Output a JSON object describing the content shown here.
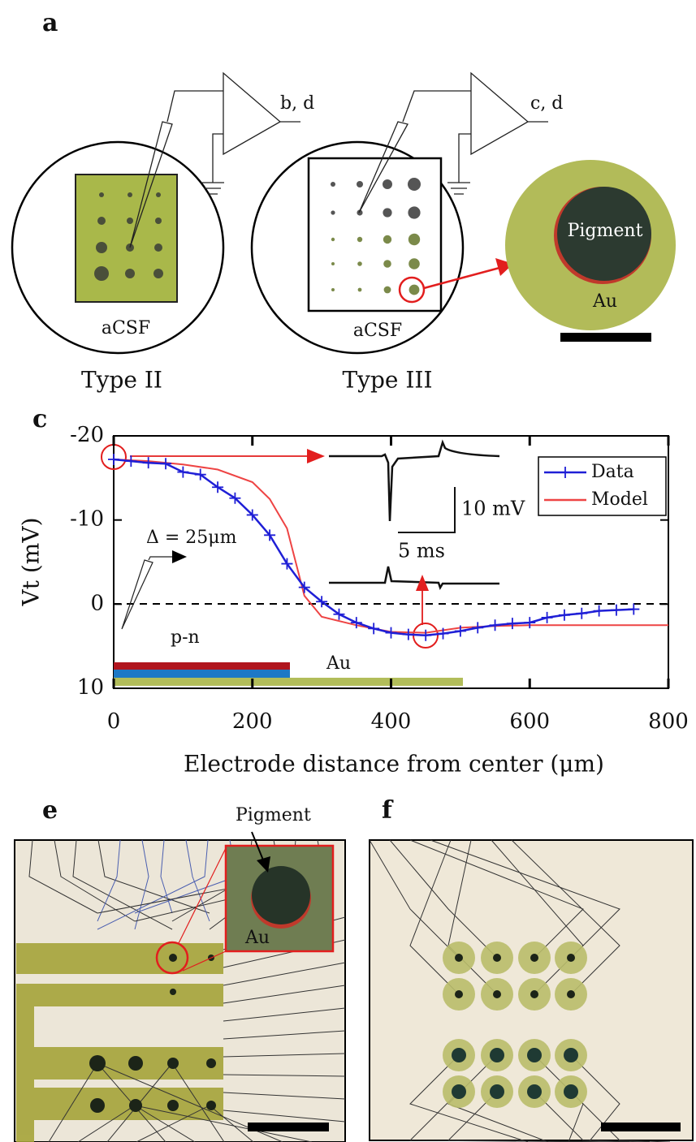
{
  "panel_a": {
    "label": "a",
    "amp_1": "b, d",
    "amp_2": "c, d",
    "acsf_1": "aCSF",
    "acsf_2": "aCSF",
    "type_2": "Type II",
    "type_3": "Type III",
    "pigment": "Pigment",
    "au": "Au"
  },
  "chart_data": {
    "type": "line",
    "panel_label": "c",
    "xlabel": "Electrode distance from center (μm)",
    "ylabel": "Vt (mV)",
    "xlim": [
      0,
      800
    ],
    "ylim": [
      10,
      -20
    ],
    "xticks": [
      0,
      200,
      400,
      600,
      800
    ],
    "yticks": [
      -20,
      -10,
      0,
      10
    ],
    "series": [
      {
        "name": "Data",
        "color": "#1f1fd6",
        "x": [
          0,
          25,
          50,
          75,
          100,
          125,
          150,
          175,
          200,
          225,
          250,
          275,
          300,
          325,
          350,
          375,
          400,
          425,
          450,
          475,
          500,
          525,
          550,
          575,
          600,
          625,
          650,
          675,
          700,
          725,
          750
        ],
        "values": [
          -17.2,
          -17,
          -16.8,
          -16.7,
          -15.7,
          -15.4,
          -13.9,
          -12.6,
          -10.6,
          -8.2,
          -4.8,
          -2,
          -0.3,
          1.2,
          2.2,
          2.9,
          3.4,
          3.6,
          3.7,
          3.5,
          3.2,
          2.8,
          2.5,
          2.3,
          2.2,
          1.6,
          1.3,
          1.1,
          0.8,
          0.7,
          0.6
        ]
      },
      {
        "name": "Model",
        "color": "#ee4444",
        "x": [
          0,
          50,
          100,
          150,
          200,
          225,
          250,
          275,
          300,
          350,
          400,
          450,
          500,
          550,
          600,
          700,
          800
        ],
        "values": [
          -17.2,
          -17,
          -16.6,
          -16,
          -14.5,
          -12.5,
          -9,
          -1,
          1.5,
          2.5,
          3.3,
          3.4,
          2.8,
          2.6,
          2.5,
          2.5,
          2.5
        ]
      }
    ],
    "annotations": {
      "delta": "Δ = 25μm",
      "pn": "p-n",
      "au": "Au",
      "scale_v": "10 mV",
      "scale_t": "5 ms"
    }
  },
  "panel_e": {
    "label": "e",
    "pigment": "Pigment",
    "au": "Au"
  },
  "panel_f": {
    "label": "f"
  }
}
